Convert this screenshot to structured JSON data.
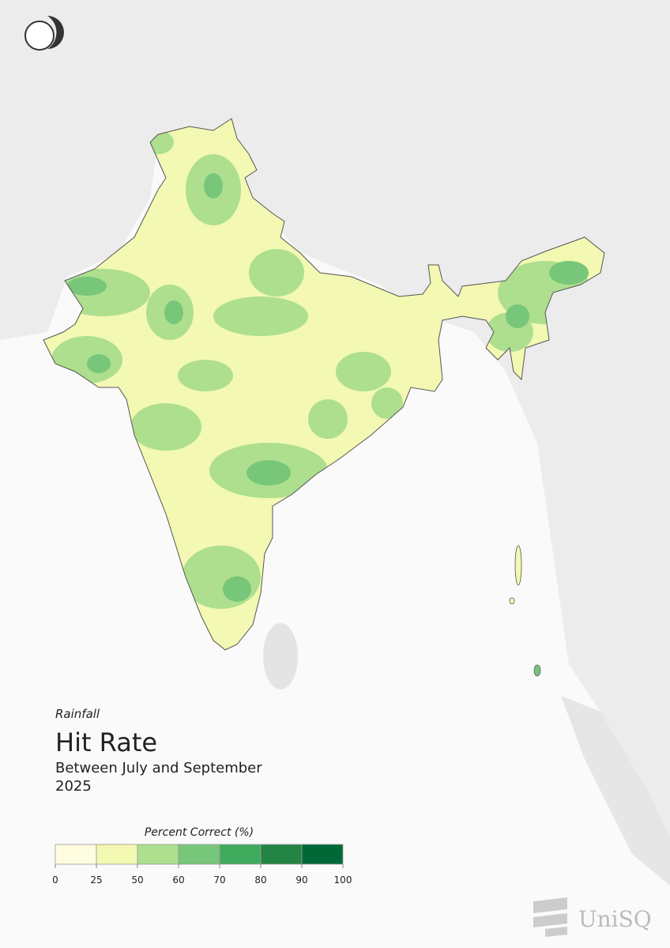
{
  "header": {
    "subtitle_top": "Rainfall",
    "title": "Hit Rate",
    "period": "Between July and September",
    "year": "2025"
  },
  "legend": {
    "title": "Percent Correct (%)",
    "ticks": [
      0,
      25,
      50,
      60,
      70,
      80,
      90,
      100
    ],
    "colors": [
      "#fefde0",
      "#f3f8b2",
      "#addf8e",
      "#78c679",
      "#41ab5d",
      "#238443",
      "#006837"
    ]
  },
  "footer": {
    "brand": "UniSQ"
  }
}
